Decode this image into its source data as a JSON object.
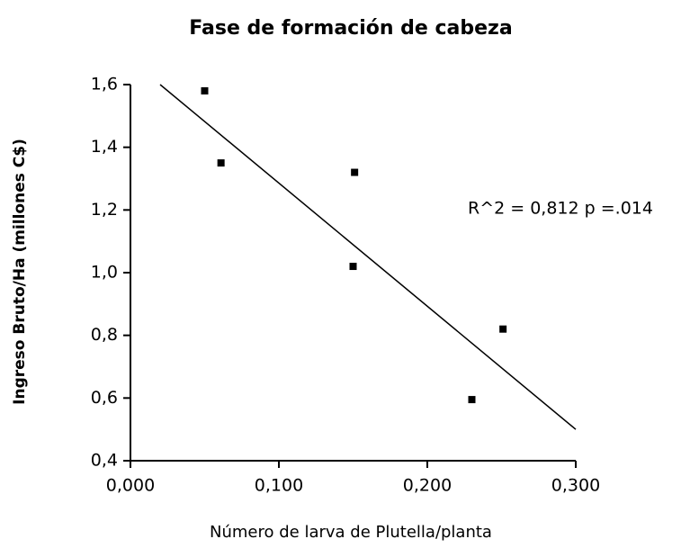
{
  "chart_data": {
    "type": "scatter",
    "title": "Fase de formación de cabeza",
    "x_label": "Número de larva de Plutella/planta",
    "y_label": "Ingreso Bruto/Ha (millones C$)",
    "annotation": "R^2 = 0,812  p =.014",
    "series": [
      {
        "color": "#000000",
        "x": [
          0.05,
          0.061,
          0.151,
          0.15,
          0.23,
          0.251
        ],
        "values": [
          1.58,
          1.35,
          1.32,
          1.02,
          0.595,
          0.82
        ]
      }
    ],
    "trend": {
      "color": "#000000",
      "x": [
        0.02,
        0.3
      ],
      "values": [
        1.6,
        0.5
      ]
    },
    "xlim": [
      0,
      0.3
    ],
    "ylim": [
      0.4,
      1.6
    ],
    "xticks": [
      {
        "value": 0,
        "label": "0,000"
      },
      {
        "value": 0.1,
        "label": "0,100"
      },
      {
        "value": 0.2,
        "label": "0,200"
      },
      {
        "value": 0.3,
        "label": "0,300"
      }
    ],
    "yticks": [
      {
        "value": 0.4,
        "label": "0,4"
      },
      {
        "value": 0.6,
        "label": "0,6"
      },
      {
        "value": 0.8,
        "label": "0,8"
      },
      {
        "value": 1.0,
        "label": "1,0"
      },
      {
        "value": 1.2,
        "label": "1,2"
      },
      {
        "value": 1.4,
        "label": "1,4"
      },
      {
        "value": 1.6,
        "label": "1,6"
      }
    ],
    "grid": false
  }
}
